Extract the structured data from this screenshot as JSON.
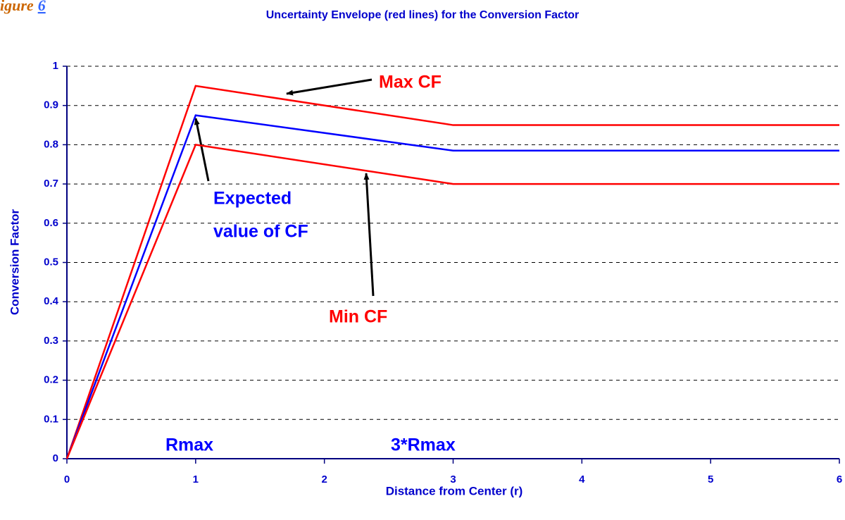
{
  "figure_label": "igure",
  "figure_number": "6",
  "chart_data": {
    "type": "line",
    "title": "Uncertainty Envelope (red lines) for the Conversion Factor",
    "xlabel": "Distance from Center (r)",
    "ylabel": "Conversion Factor",
    "x": [
      0,
      1,
      3,
      6
    ],
    "series": [
      {
        "name": "Max CF",
        "color": "#ff0000",
        "values": [
          0,
          0.95,
          0.85,
          0.85
        ]
      },
      {
        "name": "Expected value of CF",
        "color": "#0000ff",
        "values": [
          0,
          0.875,
          0.785,
          0.785
        ]
      },
      {
        "name": "Min CF",
        "color": "#ff0000",
        "values": [
          0,
          0.8,
          0.7,
          0.7
        ]
      }
    ],
    "xlim": [
      0,
      6
    ],
    "xticks": [
      0,
      1,
      2,
      3,
      4,
      5,
      6
    ],
    "ylim": [
      0,
      1
    ],
    "yticks": [
      0,
      0.1,
      0.2,
      0.3,
      0.4,
      0.5,
      0.6,
      0.7,
      0.8,
      0.9,
      1
    ],
    "grid": true,
    "annotations": [
      {
        "lines": [
          "Max CF"
        ],
        "color": "#ff0000"
      },
      {
        "lines": [
          "Expected",
          "value of CF"
        ],
        "color": "#0000ff"
      },
      {
        "lines": [
          "Min CF"
        ],
        "color": "#ff0000"
      },
      {
        "lines": [
          "Rmax"
        ],
        "color": "#0000ff"
      },
      {
        "lines": [
          "3*Rmax"
        ],
        "color": "#0000ff"
      }
    ]
  }
}
